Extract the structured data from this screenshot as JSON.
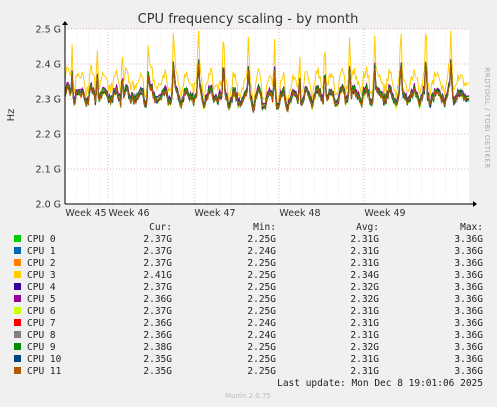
{
  "chart_data": {
    "type": "line",
    "title": "CPU frequency scaling - by month",
    "ylabel": "Hz",
    "side_label": "RRDTOOL / TOBI OETIKER",
    "y_ticks": [
      {
        "value": 2.0,
        "label": "2.0 G"
      },
      {
        "value": 2.1,
        "label": "2.1 G"
      },
      {
        "value": 2.2,
        "label": "2.2 G"
      },
      {
        "value": 2.3,
        "label": "2.3 G"
      },
      {
        "value": 2.4,
        "label": "2.4 G"
      },
      {
        "value": 2.5,
        "label": "2.5 G"
      }
    ],
    "ylim": [
      2.0,
      2.5
    ],
    "x_ticks": [
      "Week 45",
      "Week 46",
      "Week 47",
      "Week 48",
      "Week 49"
    ],
    "grid": true,
    "legend_header": {
      "cur": "Cur:",
      "min": "Min:",
      "avg": "Avg:",
      "max": "Max:"
    },
    "series": [
      {
        "name": "CPU 0",
        "color": "#00cc00",
        "cur": "2.37G",
        "min": "2.25G",
        "avg": "2.31G",
        "max": "3.36G"
      },
      {
        "name": "CPU 1",
        "color": "#0066b3",
        "cur": "2.37G",
        "min": "2.24G",
        "avg": "2.31G",
        "max": "3.36G"
      },
      {
        "name": "CPU 2",
        "color": "#ff8000",
        "cur": "2.37G",
        "min": "2.25G",
        "avg": "2.31G",
        "max": "3.36G"
      },
      {
        "name": "CPU 3",
        "color": "#ffcc00",
        "cur": "2.41G",
        "min": "2.25G",
        "avg": "2.34G",
        "max": "3.36G"
      },
      {
        "name": "CPU 4",
        "color": "#330099",
        "cur": "2.37G",
        "min": "2.25G",
        "avg": "2.32G",
        "max": "3.36G"
      },
      {
        "name": "CPU 5",
        "color": "#990099",
        "cur": "2.36G",
        "min": "2.25G",
        "avg": "2.32G",
        "max": "3.36G"
      },
      {
        "name": "CPU 6",
        "color": "#ccff00",
        "cur": "2.37G",
        "min": "2.25G",
        "avg": "2.31G",
        "max": "3.36G"
      },
      {
        "name": "CPU 7",
        "color": "#ff0000",
        "cur": "2.36G",
        "min": "2.24G",
        "avg": "2.31G",
        "max": "3.36G"
      },
      {
        "name": "CPU 8",
        "color": "#808080",
        "cur": "2.36G",
        "min": "2.24G",
        "avg": "2.31G",
        "max": "3.36G"
      },
      {
        "name": "CPU 9",
        "color": "#008f00",
        "cur": "2.38G",
        "min": "2.25G",
        "avg": "2.32G",
        "max": "3.36G"
      },
      {
        "name": "CPU 10",
        "color": "#00487d",
        "cur": "2.35G",
        "min": "2.25G",
        "avg": "2.31G",
        "max": "3.36G"
      },
      {
        "name": "CPU 11",
        "color": "#b35a00",
        "cur": "2.35G",
        "min": "2.25G",
        "avg": "2.31G",
        "max": "3.36G"
      }
    ],
    "last_update": "Last update:  Mon Dec  8 19:01:06 2025",
    "footer": "Munin 2.0.75"
  }
}
